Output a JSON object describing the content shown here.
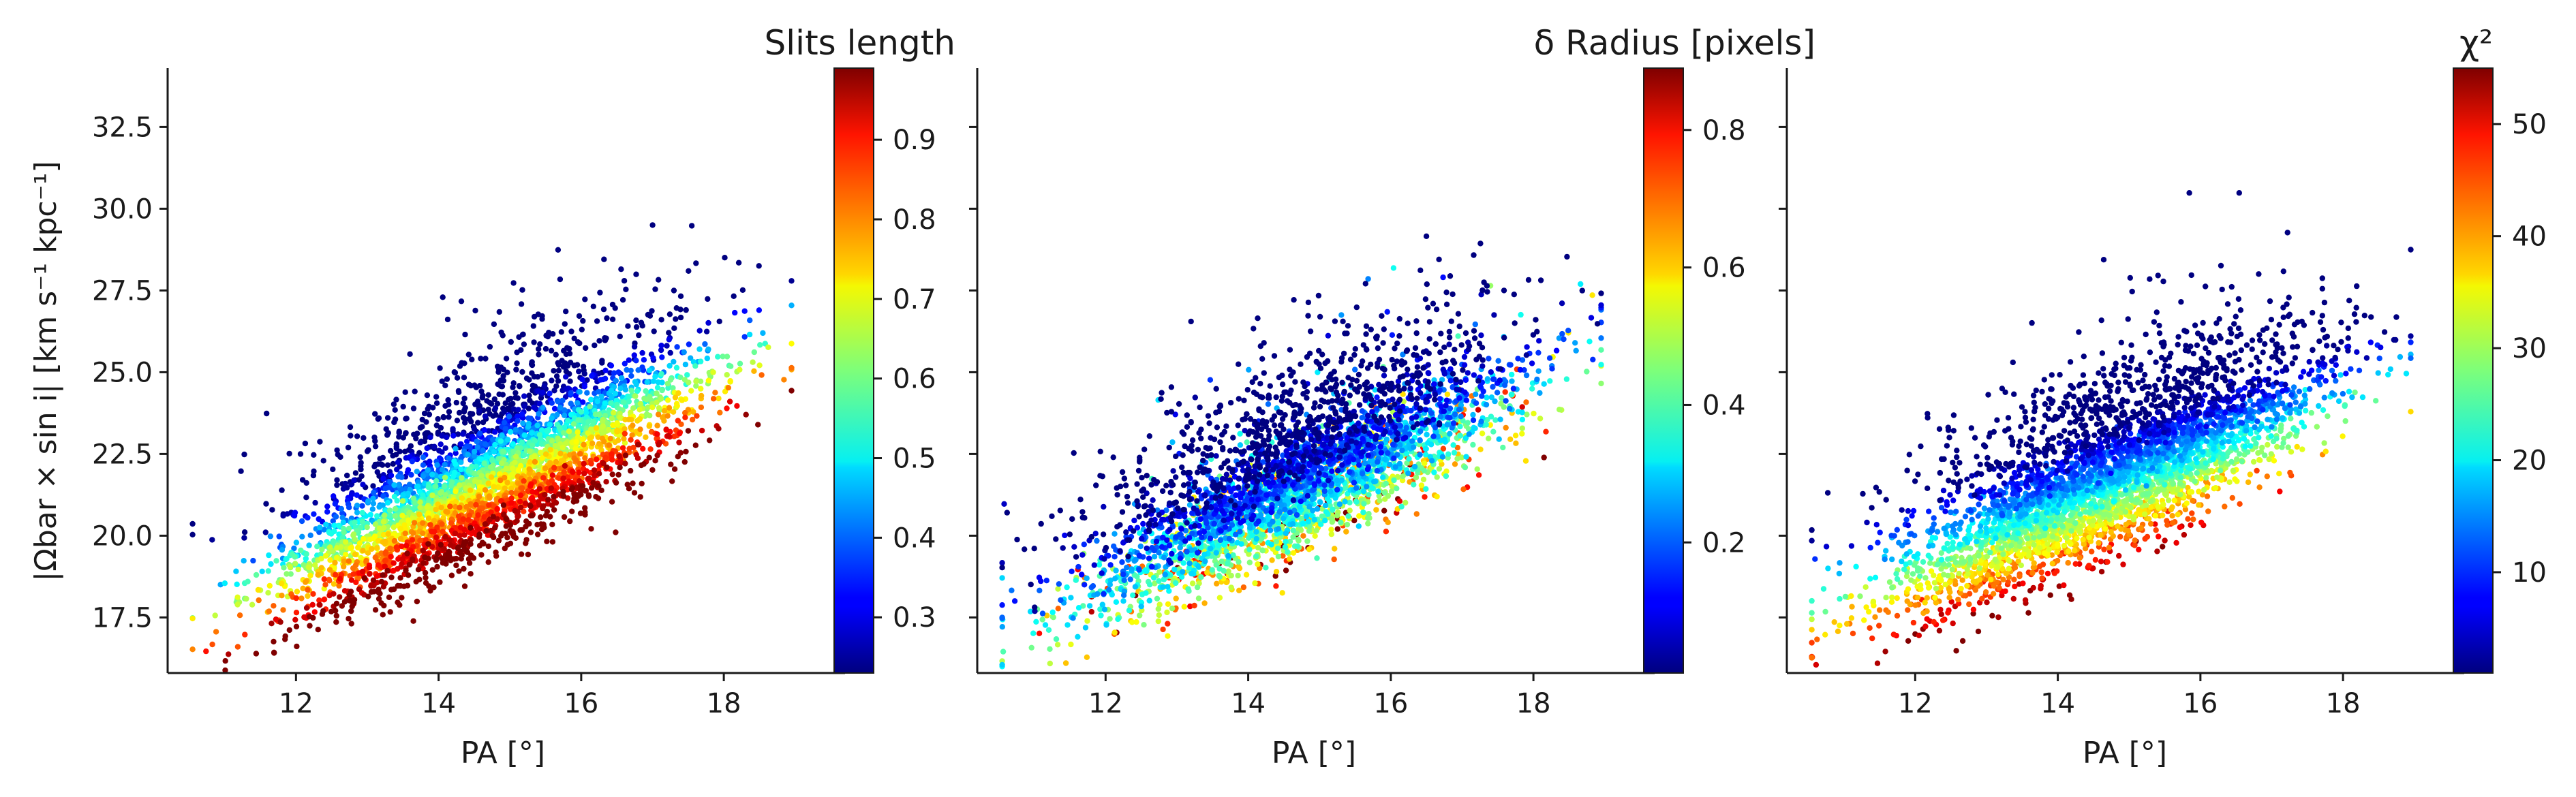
{
  "figure": {
    "ylabel": "|Ωbar × sin i|   [km s⁻¹ kpc⁻¹]"
  },
  "chart_data": [
    {
      "type": "scatter",
      "xlabel": "PA [°]",
      "xlim": [
        10.2,
        19.7
      ],
      "ylim": [
        15.8,
        34.3
      ],
      "xticks": [
        12,
        14,
        16,
        18
      ],
      "yticks": [
        17.5,
        20.0,
        22.5,
        25.0,
        27.5,
        30.0,
        32.5
      ],
      "colorbar": {
        "title": "Slits length",
        "range": [
          0.23,
          0.99
        ],
        "ticks": [
          0.3,
          0.4,
          0.5,
          0.6,
          0.7,
          0.8,
          0.9
        ],
        "colormap": "jet"
      },
      "trend": {
        "x": [
          11.0,
          18.6
        ],
        "y": [
          17.4,
          25.2
        ]
      },
      "color_gradient_across_band": "high at lower edge, low at upper edge",
      "n_points_approx": 4000
    },
    {
      "type": "scatter",
      "xlabel": "PA [°]",
      "xlim": [
        10.2,
        19.7
      ],
      "ylim": [
        15.8,
        34.3
      ],
      "xticks": [
        12,
        14,
        16,
        18
      ],
      "yticks": [
        17.5,
        20.0,
        22.5,
        25.0,
        27.5,
        30.0,
        32.5
      ],
      "colorbar": {
        "title": "δ Radius [pixels]",
        "range": [
          0.01,
          0.89
        ],
        "ticks": [
          0.2,
          0.4,
          0.6,
          0.8
        ],
        "colormap": "jet"
      },
      "trend": {
        "x": [
          11.0,
          18.6
        ],
        "y": [
          17.4,
          25.2
        ]
      },
      "color_gradient_across_band": "low at upper edge, higher at lower edge",
      "n_points_approx": 4000
    },
    {
      "type": "scatter",
      "xlabel": "PA [°]",
      "xlim": [
        10.2,
        19.7
      ],
      "ylim": [
        15.8,
        34.3
      ],
      "xticks": [
        12,
        14,
        16,
        18
      ],
      "yticks": [
        17.5,
        20.0,
        22.5,
        25.0,
        27.5,
        30.0,
        32.5
      ],
      "colorbar": {
        "title": "χ²",
        "range": [
          1,
          55
        ],
        "ticks": [
          10,
          20,
          30,
          40,
          50
        ],
        "colormap": "jet"
      },
      "trend": {
        "x": [
          11.0,
          18.6
        ],
        "y": [
          17.4,
          25.2
        ]
      },
      "color_gradient_across_band": "low at upper edge and high x, high at low x",
      "n_points_approx": 4000
    }
  ]
}
